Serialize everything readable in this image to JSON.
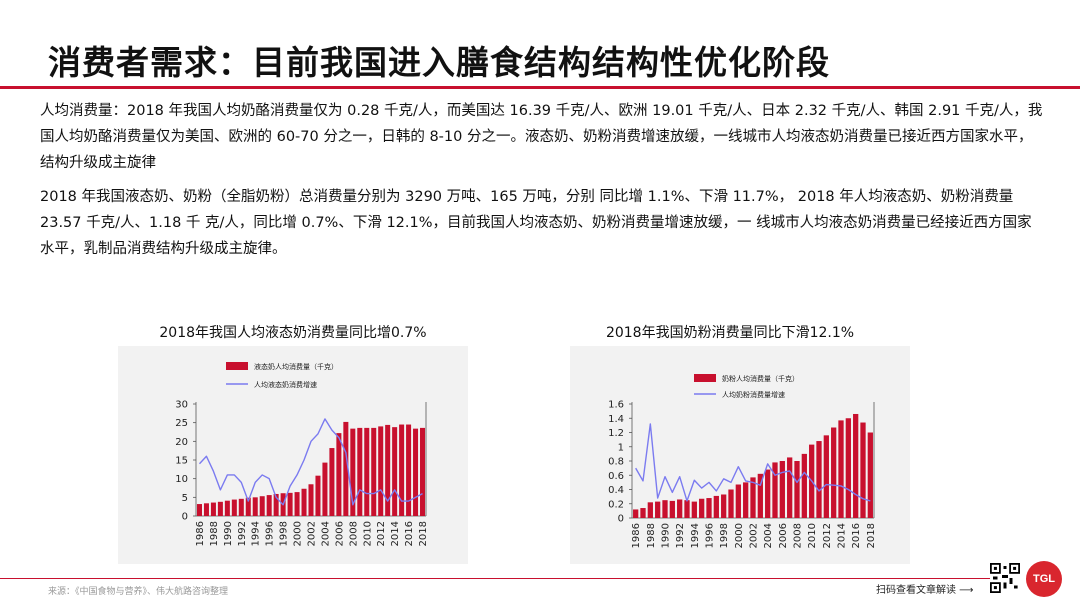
{
  "header": {
    "title": "消费者需求：目前我国进入膳食结构结构性优化阶段"
  },
  "body": {
    "paragraph1": "人均消费量：2018 年我国人均奶酪消费量仅为 0.28 千克/人，而美国达 16.39 千克/人、欧洲 19.01 千克/人、日本 2.32 千克/人、韩国 2.91 千克/人，我国人均奶酪消费量仅为美国、欧洲的 60-70 分之一，日韩的 8-10 分之一。液态奶、奶粉消费增速放缓，一线城市人均液态奶消费量已接近西方国家水平，结构升级成主旋律",
    "paragraph2": "2018 年我国液态奶、奶粉（全脂奶粉）总消费量分别为 3290 万吨、165 万吨，分别 同比增 1.1%、下滑 11.7%， 2018 年人均液态奶、奶粉消费量 23.57 千克/人、1.18 千 克/人，同比增 0.7%、下滑 12.1%，目前我国人均液态奶、奶粉消费量增速放缓，一 线城市人均液态奶消费量已经接近西方国家水平，乳制品消费结构升级成主旋律。"
  },
  "footer": {
    "source": "来源：《中国食物与营养》、伟大航路咨询整理",
    "scan": "扫码查看文章解读 ⟶",
    "logo": "TGL"
  },
  "colors": {
    "accent": "#c8102e",
    "bar": "#c8102e",
    "line": "#7b7bf0",
    "panel": "#f2f2f2"
  },
  "chart_data": [
    {
      "type": "bar",
      "title": "2018年我国人均液态奶消费量同比增0.7%",
      "legend": [
        "液态奶人均消费量（千克）",
        "人均液态奶消费增速"
      ],
      "years": [
        1986,
        1987,
        1988,
        1989,
        1990,
        1991,
        1992,
        1993,
        1994,
        1995,
        1996,
        1997,
        1998,
        1999,
        2000,
        2001,
        2002,
        2003,
        2004,
        2005,
        2006,
        2007,
        2008,
        2009,
        2010,
        2011,
        2012,
        2013,
        2014,
        2015,
        2016,
        2017,
        2018
      ],
      "xtick_labels": [
        "1986",
        "1988",
        "1990",
        "1992",
        "1994",
        "1996",
        "1998",
        "2000",
        "2002",
        "2004",
        "2006",
        "2008",
        "2010",
        "2012",
        "2014",
        "2016",
        "2018"
      ],
      "ylim": [
        0,
        30
      ],
      "yticks": [
        "0",
        "5",
        "10",
        "15",
        "20",
        "25",
        "30"
      ],
      "bar_values": [
        3.2,
        3.4,
        3.6,
        3.8,
        4.1,
        4.4,
        4.6,
        4.9,
        5.0,
        5.3,
        5.6,
        5.9,
        6.1,
        6.2,
        6.4,
        7.3,
        8.5,
        10.8,
        14.3,
        18.2,
        22.2,
        25.2,
        23.4,
        23.6,
        23.6,
        23.6,
        24.0,
        24.4,
        23.8,
        24.5,
        24.5,
        23.4,
        23.6
      ],
      "growth_series": [
        14,
        16,
        12,
        7,
        11,
        11,
        9,
        4,
        9,
        11,
        10,
        5,
        3,
        8,
        11,
        15,
        20,
        22,
        26,
        23,
        21,
        17,
        3,
        7,
        6,
        6,
        7,
        4,
        7,
        4,
        4,
        5,
        6
      ]
    },
    {
      "type": "bar",
      "title": "2018年我国奶粉消费量同比下滑12.1%",
      "legend": [
        "奶粉人均消费量（千克）",
        "人均奶粉消费量增速"
      ],
      "years": [
        1986,
        1987,
        1988,
        1989,
        1990,
        1991,
        1992,
        1993,
        1994,
        1995,
        1996,
        1997,
        1998,
        1999,
        2000,
        2001,
        2002,
        2003,
        2004,
        2005,
        2006,
        2007,
        2008,
        2009,
        2010,
        2011,
        2012,
        2013,
        2014,
        2015,
        2016,
        2017,
        2018
      ],
      "xtick_labels": [
        "1986",
        "1988",
        "1990",
        "1992",
        "1994",
        "1996",
        "1998",
        "2000",
        "2002",
        "2004",
        "2006",
        "2008",
        "2010",
        "2012",
        "2014",
        "2016",
        "2018"
      ],
      "ylim": [
        0,
        1.6
      ],
      "yticks": [
        "0",
        "0.2",
        "0.4",
        "0.6",
        "0.8",
        "1",
        "1.2",
        "1.4",
        "1.6"
      ],
      "bar_values": [
        0.12,
        0.14,
        0.22,
        0.23,
        0.25,
        0.24,
        0.26,
        0.25,
        0.23,
        0.27,
        0.28,
        0.31,
        0.33,
        0.4,
        0.47,
        0.5,
        0.57,
        0.62,
        0.68,
        0.78,
        0.8,
        0.85,
        0.8,
        0.9,
        1.03,
        1.08,
        1.16,
        1.27,
        1.37,
        1.4,
        1.46,
        1.34,
        1.2
      ],
      "growth_series": [
        0.7,
        0.52,
        1.32,
        0.28,
        0.58,
        0.36,
        0.58,
        0.24,
        0.53,
        0.42,
        0.5,
        0.38,
        0.55,
        0.5,
        0.72,
        0.52,
        0.5,
        0.46,
        0.76,
        0.6,
        0.64,
        0.66,
        0.5,
        0.64,
        0.52,
        0.38,
        0.47,
        0.46,
        0.45,
        0.4,
        0.33,
        0.27,
        0.24
      ]
    }
  ]
}
